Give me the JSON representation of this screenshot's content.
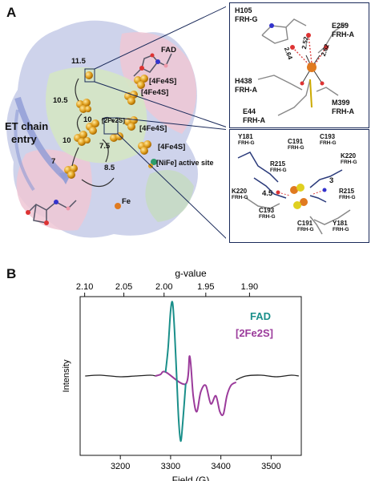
{
  "panel_a": {
    "letter": "A",
    "labels": {
      "fad": "FAD",
      "fes_1": "[4Fe4S]",
      "fes_2": "[4Fe4S]",
      "fes_3": "[4Fe4S]",
      "fes_4": "[4Fe4S]",
      "fe2s": "[2Fe2S]",
      "nife": "[NiFe] active site",
      "fe": "Fe",
      "et_chain_line1": "ET chain",
      "et_chain_line2": "entry"
    },
    "distances": [
      "11.5",
      "10.5",
      "10",
      "10",
      "7.5",
      "7",
      "8.5"
    ],
    "inset_top": {
      "residues": [
        {
          "name": "H105",
          "chain": "FRH-G"
        },
        {
          "name": "E259",
          "chain": "FRH-A"
        },
        {
          "name": "H438",
          "chain": "FRH-A"
        },
        {
          "name": "E44",
          "chain": "FRH-A"
        },
        {
          "name": "M399",
          "chain": "FRH-A"
        }
      ],
      "distances": [
        "2.64",
        "2.52",
        "2.62"
      ]
    },
    "inset_bottom": {
      "residues": [
        {
          "name": "Y181",
          "chain": "FRH-G",
          "sub": "S"
        },
        {
          "name": "C191",
          "chain": "FRH-G",
          "sub": "S"
        },
        {
          "name": "C193",
          "chain": "FRH-G",
          "sub": "S"
        },
        {
          "name": "K220",
          "chain": "FRH-G",
          "sub": "S"
        },
        {
          "name": "R215",
          "chain": "FRH-G",
          "sub": "S"
        },
        {
          "name": "K220",
          "chain": "FRH-G",
          "sub": ""
        },
        {
          "name": "R215",
          "chain": "FRH-G",
          "sub": ""
        },
        {
          "name": "C193",
          "chain": "FRH-G",
          "sub": ""
        },
        {
          "name": "C191",
          "chain": "FRH-G",
          "sub": ""
        },
        {
          "name": "Y181",
          "chain": "FRH-G",
          "sub": ""
        }
      ],
      "distances": [
        "4.5",
        "3"
      ]
    }
  },
  "panel_b": {
    "letter": "B",
    "colors": {
      "fad": "#1a8f8a",
      "fe2s": "#9b3b9b",
      "baseline": "#222222"
    },
    "chart_data": {
      "type": "line",
      "title": "",
      "xlabel": "Field (G)",
      "ylabel": "Intensity",
      "top_axis_label": "g-value",
      "xlim": [
        3120,
        3560
      ],
      "xticks": [
        3200,
        3300,
        3400,
        3500
      ],
      "top_ticks": [
        "2.10",
        "2.05",
        "2.00",
        "1.95",
        "1.90"
      ],
      "top_tick_field": [
        3129,
        3207,
        3287,
        3370,
        3457
      ],
      "ylim": [
        -1.0,
        1.0
      ],
      "series": [
        {
          "name": "FAD",
          "color": "#1a8f8a",
          "x": [
            3290,
            3295,
            3300,
            3304,
            3308,
            3312,
            3316,
            3320,
            3324,
            3330
          ],
          "y": [
            0.05,
            0.35,
            0.82,
            0.92,
            0.55,
            0.0,
            -0.55,
            -0.82,
            -0.6,
            -0.1
          ]
        },
        {
          "name": "[2Fe2S]",
          "color": "#9b3b9b",
          "x": [
            3270,
            3280,
            3290,
            3330,
            3338,
            3345,
            3352,
            3360,
            3370,
            3380,
            3390,
            3398,
            3405,
            3412,
            3420,
            3430
          ],
          "y": [
            0.0,
            0.02,
            0.05,
            -0.1,
            0.25,
            -0.25,
            -0.45,
            -0.2,
            -0.12,
            -0.35,
            -0.25,
            -0.45,
            -0.48,
            -0.25,
            -0.12,
            -0.08
          ]
        }
      ],
      "baseline": {
        "x": [
          3130,
          3160,
          3200,
          3230,
          3260,
          3270,
          3430,
          3450,
          3480,
          3510,
          3540,
          3555
        ],
        "y": [
          0.0,
          0.01,
          -0.01,
          0.0,
          0.01,
          0.0,
          -0.05,
          0.0,
          0.01,
          -0.01,
          0.01,
          0.0
        ]
      }
    }
  }
}
